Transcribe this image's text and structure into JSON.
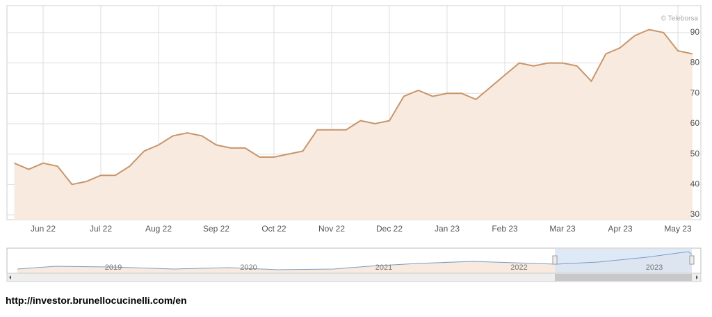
{
  "chart_data": {
    "type": "area",
    "watermark": "© Teleborsa",
    "categories": [
      null,
      null,
      "Jun 22",
      null,
      null,
      null,
      "Jul 22",
      null,
      null,
      null,
      "Aug 22",
      null,
      null,
      null,
      "Sep 22",
      null,
      null,
      null,
      "Oct 22",
      null,
      null,
      null,
      "Nov 22",
      null,
      null,
      null,
      "Dec 22",
      null,
      null,
      null,
      "Jan 23",
      null,
      null,
      null,
      "Feb 23",
      null,
      null,
      null,
      "Mar 23",
      null,
      null,
      null,
      "Apr 23",
      null,
      null,
      null,
      "May 23",
      null
    ],
    "values": [
      47,
      45,
      47,
      46,
      40,
      41,
      43,
      43,
      46,
      51,
      53,
      56,
      57,
      56,
      53,
      52,
      52,
      49,
      49,
      50,
      51,
      58,
      58,
      58,
      61,
      60,
      61,
      69,
      71,
      69,
      70,
      70,
      68,
      72,
      76,
      80,
      79,
      80,
      80,
      79,
      74,
      83,
      85,
      89,
      91,
      90,
      84,
      83
    ],
    "color": "#c8956a",
    "fill": "#f8eadf",
    "ylim": [
      28.4,
      98.9
    ],
    "yticks": [
      30,
      40,
      50,
      60,
      70,
      80,
      90
    ],
    "grid": true
  },
  "navigator": {
    "labels": [
      "2019",
      "2020",
      "2021",
      "2022",
      "2023"
    ]
  },
  "footer": {
    "url": "http://investor.brunellocucinelli.com/en"
  }
}
